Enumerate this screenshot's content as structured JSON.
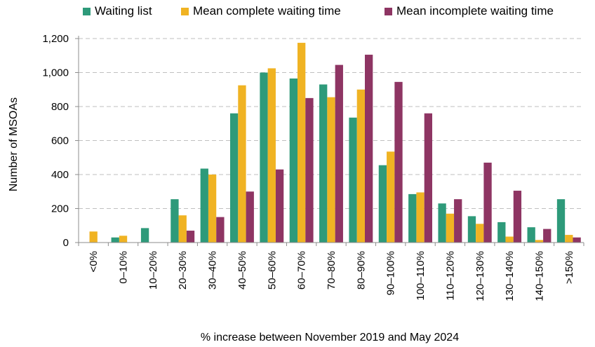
{
  "chart_data": {
    "type": "bar",
    "title": "",
    "xlabel": "% increase between November 2019 and May 2024",
    "ylabel": "Number of MSOAs",
    "ylim": [
      0,
      1200
    ],
    "yticks": [
      0,
      200,
      400,
      600,
      800,
      1000,
      1200
    ],
    "ytick_labels": [
      "0",
      "200",
      "400",
      "600",
      "800",
      "1,000",
      "1,200"
    ],
    "grid": "horizontal dashed",
    "legend_position": "top",
    "categories": [
      "<0%",
      "0–10%",
      "10–20%",
      "20–30%",
      "30–40%",
      "40–50%",
      "50–60%",
      "60–70%",
      "70–80%",
      "80–90%",
      "90–100%",
      "100–110%",
      "110–120%",
      "120–130%",
      "130–140%",
      "140–150%",
      ">150%"
    ],
    "series": [
      {
        "name": "Waiting list",
        "color": "#2E9A7A",
        "values": [
          0,
          30,
          85,
          255,
          435,
          760,
          1000,
          965,
          930,
          735,
          455,
          285,
          230,
          155,
          120,
          90,
          255
        ]
      },
      {
        "name": "Mean complete waiting time",
        "color": "#F0B323",
        "values": [
          65,
          40,
          0,
          160,
          400,
          925,
          1025,
          1175,
          855,
          900,
          535,
          295,
          170,
          110,
          35,
          15,
          45
        ]
      },
      {
        "name": "Mean incomplete waiting time",
        "color": "#8E3563",
        "values": [
          0,
          0,
          0,
          70,
          150,
          300,
          430,
          850,
          1045,
          1105,
          945,
          760,
          255,
          470,
          305,
          80,
          30
        ]
      }
    ]
  }
}
